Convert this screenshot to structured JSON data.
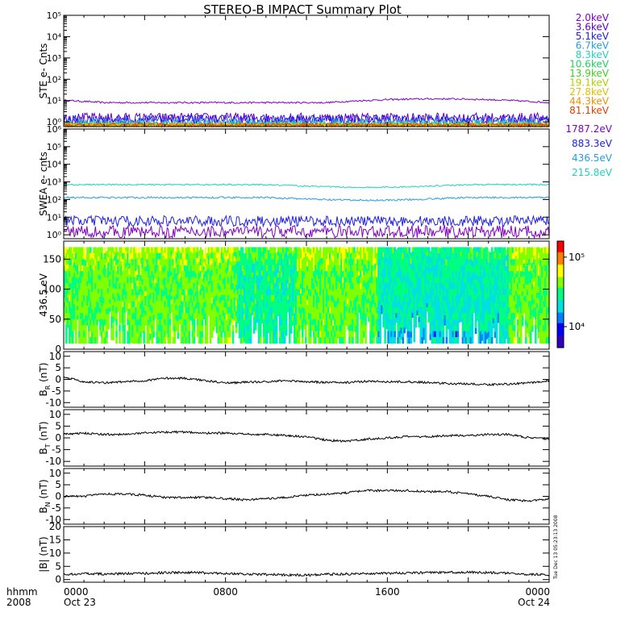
{
  "title": "STEREO-B IMPACT Summary Plot",
  "time_axis": {
    "row1_label": "hhmm",
    "row2_label": "2008",
    "ticks": [
      {
        "hour": 0,
        "time": "0000",
        "date": "Oct 23"
      },
      {
        "hour": 8,
        "time": "0800",
        "date": ""
      },
      {
        "hour": 16,
        "time": "1600",
        "date": ""
      },
      {
        "hour": 24,
        "time": "0000",
        "date": "Oct 24"
      }
    ],
    "range_hours": [
      0,
      24
    ]
  },
  "colors": {
    "ste": [
      "#8000c0",
      "#5a00cc",
      "#2020e0",
      "#20a0e0",
      "#20d0c0",
      "#20d060",
      "#40d020",
      "#b0d000",
      "#e0c000",
      "#f09000",
      "#e04000"
    ],
    "swea": [
      "#8000c0",
      "#2020e0",
      "#20a0e0",
      "#20d0c0"
    ],
    "colorbar": [
      "#3000c0",
      "#0000ff",
      "#0080ff",
      "#00e0e0",
      "#00ff80",
      "#80ff00",
      "#ffff00",
      "#ff8000",
      "#ff0000"
    ]
  },
  "timestamp": "Tue Dec 13 05:23:13 2008",
  "chart_data": [
    {
      "type": "line",
      "panel": "ste",
      "ylabel": "STE e- Cnts",
      "yscale": "log",
      "ylim": [
        0.6,
        100000
      ],
      "ytick_labels": [
        "10⁰",
        "10¹",
        "10²",
        "10³",
        "10⁴",
        "10⁵"
      ],
      "series": [
        {
          "name": "2.0keV",
          "level": 8,
          "noise": 0.04
        },
        {
          "name": "3.6keV",
          "level": 1.5,
          "noise": 0.25
        },
        {
          "name": "5.1keV",
          "level": 1.2,
          "noise": 0.25
        },
        {
          "name": "6.7keV",
          "level": 0.9,
          "noise": 0.2
        },
        {
          "name": "8.3keV",
          "level": 0.8,
          "noise": 0.15
        },
        {
          "name": "10.6keV",
          "level": 0.7,
          "noise": 0.1
        },
        {
          "name": "13.9keV",
          "level": 0.7,
          "noise": 0.1
        },
        {
          "name": "19.1keV",
          "level": 0.7,
          "noise": 0.1
        },
        {
          "name": "27.8keV",
          "level": 0.7,
          "noise": 0.1
        },
        {
          "name": "44.3keV",
          "level": 0.7,
          "noise": 0.1
        },
        {
          "name": "81.1keV",
          "level": 0.7,
          "noise": 0.1
        }
      ]
    },
    {
      "type": "line",
      "panel": "swea",
      "ylabel": "SWEA e- cnts",
      "yscale": "log",
      "ylim": [
        0.6,
        1000000
      ],
      "ytick_labels": [
        "10⁰",
        "10¹",
        "10²",
        "10³",
        "10⁴",
        "10⁵",
        "10⁶"
      ],
      "series": [
        {
          "name": "1787.2eV",
          "level": 1.5,
          "noise": 0.35
        },
        {
          "name": "883.3eV",
          "level": 6,
          "noise": 0.3
        },
        {
          "name": "436.5eV",
          "level": 130,
          "noise": 0.05
        },
        {
          "name": "215.8eV",
          "level": 700,
          "noise": 0.04
        }
      ]
    },
    {
      "type": "heatmap",
      "panel": "pad",
      "ylabel": "436.5 eV",
      "ylim": [
        0,
        180
      ],
      "y_ticks": [
        0,
        50,
        100,
        150
      ],
      "colorbar": {
        "scale": "log",
        "range": [
          5000,
          170000
        ],
        "tick_labels": [
          "10⁴",
          "10⁵"
        ],
        "tick_values": [
          10000,
          100000
        ]
      }
    },
    {
      "type": "line",
      "panel": "br",
      "ylabel": "B",
      "ylabel_sub": "R",
      "ylabel_unit": "(nT)",
      "ylim": [
        -12,
        12
      ],
      "y_ticks": [
        -10,
        -5,
        0,
        5,
        10
      ],
      "x": [
        0,
        1,
        2,
        3,
        4,
        5,
        6,
        7,
        8,
        9,
        10,
        11,
        12,
        13,
        14,
        15,
        16,
        17,
        18,
        19,
        20,
        21,
        22,
        23,
        24
      ],
      "values": [
        1,
        -1,
        -1.5,
        -1,
        -0.5,
        0.5,
        0.5,
        -0.5,
        -1.5,
        -1.2,
        -1,
        -0.5,
        -1,
        -1.3,
        -1.3,
        -0.8,
        -1,
        -1,
        -1.3,
        -1.8,
        -2,
        -2.2,
        -2,
        -1.5,
        -0.5
      ]
    },
    {
      "type": "line",
      "panel": "bt",
      "ylabel": "B",
      "ylabel_sub": "T",
      "ylabel_unit": "(nT)",
      "ylim": [
        -12,
        12
      ],
      "y_ticks": [
        -10,
        -5,
        0,
        5,
        10
      ],
      "x": [
        0,
        1,
        2,
        3,
        4,
        5,
        6,
        7,
        8,
        9,
        10,
        11,
        12,
        13,
        14,
        15,
        16,
        17,
        18,
        19,
        20,
        21,
        22,
        23,
        24
      ],
      "values": [
        1.5,
        2,
        1.5,
        1.5,
        2,
        2.5,
        2.5,
        2,
        2,
        1.5,
        1.5,
        1,
        0.5,
        -1,
        -1.5,
        -0.5,
        0,
        0.5,
        0.5,
        1,
        1,
        1.5,
        1.5,
        0,
        -0.5
      ]
    },
    {
      "type": "line",
      "panel": "bn",
      "ylabel": "B",
      "ylabel_sub": "N",
      "ylabel_unit": "(nT)",
      "ylim": [
        -12,
        12
      ],
      "y_ticks": [
        -10,
        -5,
        0,
        5,
        10
      ],
      "x": [
        0,
        1,
        2,
        3,
        4,
        5,
        6,
        7,
        8,
        9,
        10,
        11,
        12,
        13,
        14,
        15,
        16,
        17,
        18,
        19,
        20,
        21,
        22,
        23,
        24
      ],
      "values": [
        0,
        0,
        1,
        1,
        0.5,
        -0.5,
        -0.5,
        -0.5,
        -1,
        -1.5,
        -1,
        -0.5,
        0.5,
        1,
        1.5,
        2.5,
        2.5,
        2.5,
        2,
        2,
        1,
        0,
        -1.5,
        -2,
        -1
      ]
    },
    {
      "type": "line",
      "panel": "bmag",
      "ylabel": "|B| (nT)",
      "ylim": [
        -1,
        20
      ],
      "y_ticks": [
        0,
        5,
        10,
        15,
        20
      ],
      "x": [
        0,
        1,
        2,
        3,
        4,
        5,
        6,
        7,
        8,
        9,
        10,
        11,
        12,
        13,
        14,
        15,
        16,
        17,
        18,
        19,
        20,
        21,
        22,
        23,
        24
      ],
      "values": [
        2,
        2.2,
        2.1,
        2.2,
        2.4,
        2.6,
        2.7,
        2.5,
        2.3,
        2.1,
        1.9,
        1.8,
        1.7,
        2,
        2.1,
        2.3,
        2.4,
        2.5,
        2.6,
        2.7,
        2.8,
        2.6,
        2.4,
        2,
        1.8
      ]
    }
  ]
}
